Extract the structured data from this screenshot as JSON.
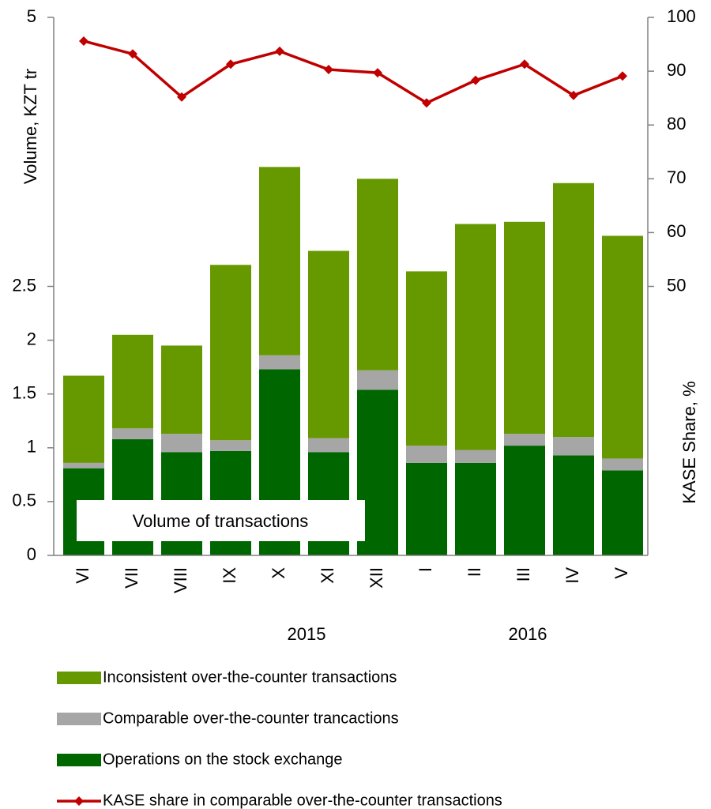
{
  "chart_data": {
    "type": "bar",
    "categories": [
      "VI",
      "VII",
      "VIII",
      "IX",
      "X",
      "XI",
      "XII",
      "I",
      "II",
      "III",
      "IV",
      "V"
    ],
    "groups": [
      "2015",
      "2016"
    ],
    "annotation": "Volume of transactions",
    "y_label": "Volume, KZT tr",
    "y2_label": "KASE Share, %",
    "ylim": [
      0,
      5
    ],
    "yticks": [
      0,
      0.5,
      1,
      1.5,
      2,
      2.5,
      5
    ],
    "y2lim": [
      0,
      100
    ],
    "y2ticks": [
      50,
      60,
      70,
      80,
      90,
      100
    ],
    "series": [
      {
        "name": "Inconsistent over-the-counter transactions",
        "type": "bar",
        "color": "#669900",
        "values": [
          0.81,
          0.87,
          0.82,
          1.63,
          1.75,
          1.74,
          1.78,
          1.62,
          2.1,
          1.97,
          2.36,
          2.07
        ]
      },
      {
        "name": "Comparable over-the-counter trancactions",
        "type": "bar",
        "color": "#a6a6a6",
        "values": [
          0.05,
          0.1,
          0.17,
          0.1,
          0.13,
          0.13,
          0.18,
          0.16,
          0.12,
          0.11,
          0.17,
          0.11
        ]
      },
      {
        "name": "Operations on the stock exchange",
        "type": "bar",
        "color": "#006600",
        "values": [
          0.81,
          1.08,
          0.96,
          0.97,
          1.73,
          0.96,
          1.54,
          0.86,
          0.86,
          1.02,
          0.93,
          0.79
        ]
      },
      {
        "name": "KASE share in comparable over-the-counter transactions",
        "type": "line",
        "axis": "y2",
        "color": "#c00000",
        "values": [
          95.6,
          93.2,
          85.2,
          91.3,
          93.7,
          90.3,
          89.7,
          84.1,
          88.3,
          91.3,
          85.5,
          89.1
        ]
      }
    ]
  }
}
